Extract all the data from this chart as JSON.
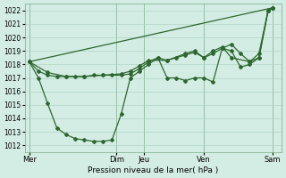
{
  "xlabel": "Pression niveau de la mer( hPa )",
  "ylim": [
    1011.5,
    1022.5
  ],
  "xlim": [
    0,
    28
  ],
  "yticks": [
    1012,
    1013,
    1014,
    1015,
    1016,
    1017,
    1018,
    1019,
    1020,
    1021,
    1022
  ],
  "bg_color": "#d4ede4",
  "grid_color": "#b0d4c4",
  "line_color": "#2d6630",
  "fig_bg": "#d4ede4",
  "x_day_labels": [
    "Mer",
    "Dim",
    "Jeu",
    "Ven",
    "Sam"
  ],
  "x_day_positions": [
    0.5,
    10,
    13,
    19.5,
    27
  ],
  "vlines": [
    0.5,
    10,
    13,
    19.5,
    27
  ],
  "s1x": [
    0.5,
    1.5,
    2.5,
    3.5,
    4.5,
    5.5,
    6.5,
    7.5,
    8.5,
    9.5,
    10.5,
    11.5,
    12.5,
    13.5,
    14.5,
    15.5,
    16.5,
    17.5,
    18.5,
    19.5,
    20.5,
    21.5,
    22.5,
    23.5,
    24.5,
    25.5,
    26.5,
    27.0
  ],
  "s1y": [
    1018.2,
    1017.5,
    1017.2,
    1017.1,
    1017.1,
    1017.1,
    1017.1,
    1017.2,
    1017.2,
    1017.2,
    1017.2,
    1017.3,
    1017.7,
    1018.2,
    1018.5,
    1018.3,
    1018.5,
    1018.7,
    1018.9,
    1018.5,
    1018.8,
    1019.2,
    1019.5,
    1018.8,
    1018.2,
    1018.8,
    1022.0,
    1022.2
  ],
  "s2x": [
    0.5,
    2.5,
    4.5,
    6.5,
    8.5,
    10.5,
    11.5,
    12.5,
    13.5,
    15.5,
    17.5,
    18.5,
    19.5,
    20.5,
    21.5,
    22.5,
    24.5,
    25.5,
    26.5,
    27.0
  ],
  "s2y": [
    1018.2,
    1017.4,
    1017.1,
    1017.1,
    1017.2,
    1017.3,
    1017.5,
    1017.9,
    1018.3,
    1018.3,
    1018.8,
    1019.0,
    1018.5,
    1019.0,
    1019.3,
    1018.5,
    1018.2,
    1018.5,
    1022.0,
    1022.2
  ],
  "s3x": [
    0.5,
    1.5,
    2.5,
    3.5,
    4.5,
    5.5,
    6.5,
    7.5,
    8.5,
    9.5,
    10.5,
    11.5,
    12.5,
    13.5,
    14.5,
    15.5,
    16.5,
    17.5,
    18.5,
    19.5,
    20.5,
    21.5,
    22.5,
    23.5,
    24.5,
    25.5,
    26.5,
    27.0
  ],
  "s3y": [
    1018.2,
    1017.0,
    1015.1,
    1013.3,
    1012.8,
    1012.5,
    1012.4,
    1012.3,
    1012.3,
    1012.4,
    1014.3,
    1017.0,
    1017.5,
    1018.0,
    1018.5,
    1017.0,
    1017.0,
    1016.8,
    1017.0,
    1017.0,
    1016.7,
    1019.2,
    1019.0,
    1017.8,
    1018.0,
    1018.5,
    1022.0,
    1022.2
  ],
  "s4x": [
    0.5,
    27.0
  ],
  "s4y": [
    1018.2,
    1022.2
  ],
  "marker": "D",
  "markersize": 2.0,
  "linewidth": 0.9
}
